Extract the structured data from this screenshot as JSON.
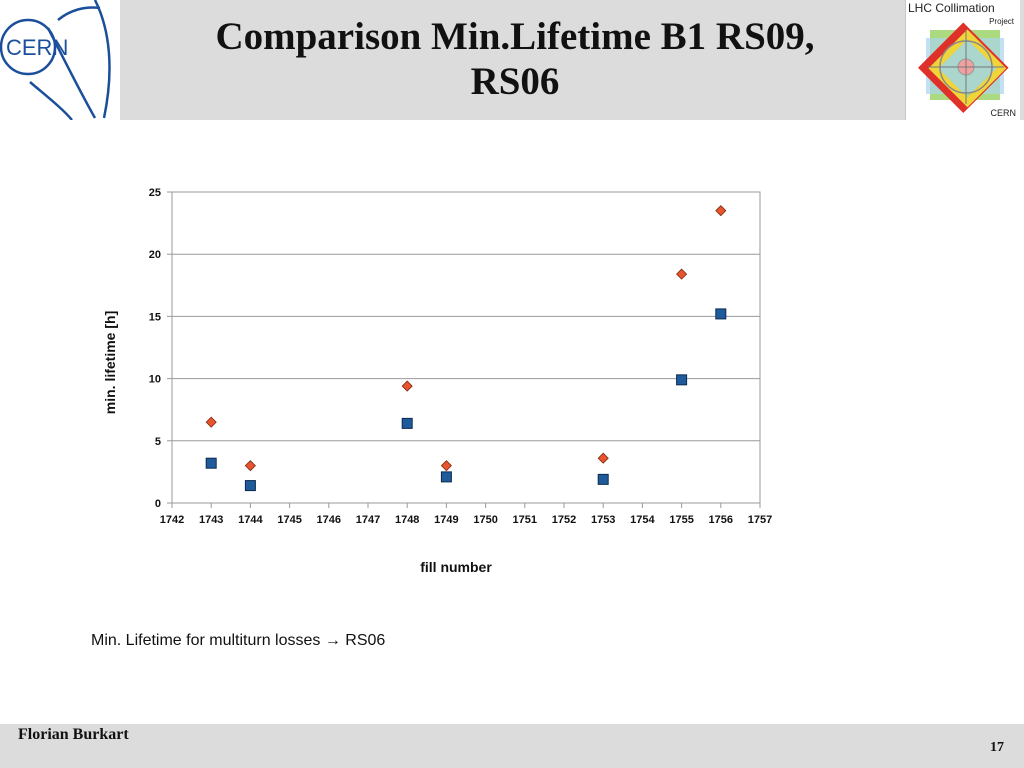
{
  "header": {
    "title_line1": "Comparison Min.Lifetime B1 RS09,",
    "title_line2": "RS06",
    "cern_logo_text": "CERN",
    "lhc_logo": {
      "line1": "LHC Collimation",
      "line2": "Project",
      "line3": "CERN"
    }
  },
  "chart_data": {
    "type": "scatter",
    "title": "",
    "xlabel": "fill number",
    "ylabel": "min. lifetime [h]",
    "xlim": [
      1742,
      1757
    ],
    "ylim": [
      0,
      25
    ],
    "x_ticks": [
      1742,
      1743,
      1744,
      1745,
      1746,
      1747,
      1748,
      1749,
      1750,
      1751,
      1752,
      1753,
      1754,
      1755,
      1756,
      1757
    ],
    "y_ticks": [
      0,
      5,
      10,
      15,
      20,
      25
    ],
    "grid": "horizontal",
    "series": [
      {
        "marker": "diamond",
        "color": "#e8542c",
        "x": [
          1743,
          1744,
          1748,
          1749,
          1753,
          1755,
          1756
        ],
        "y": [
          6.5,
          3.0,
          9.4,
          3.0,
          3.6,
          18.4,
          23.5
        ]
      },
      {
        "marker": "square",
        "color": "#1f5a9a",
        "x": [
          1743,
          1744,
          1748,
          1749,
          1753,
          1755,
          1756
        ],
        "y": [
          3.2,
          1.4,
          6.4,
          2.1,
          1.9,
          9.9,
          15.2
        ]
      }
    ]
  },
  "caption": "Min. Lifetime for multiturn losses → RS06",
  "footer": {
    "author": "Florian Burkart",
    "page": "17"
  }
}
